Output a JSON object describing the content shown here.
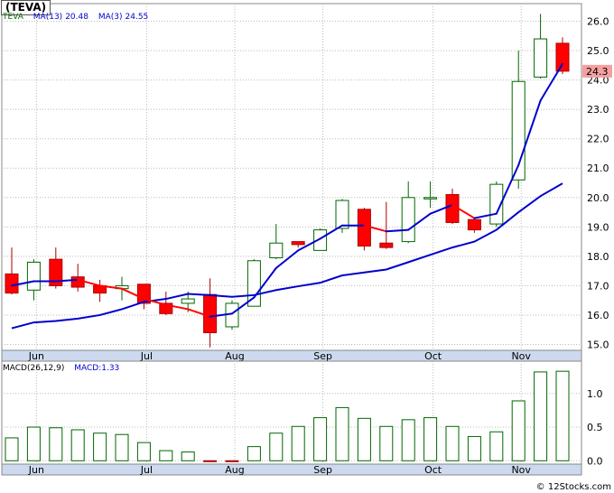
{
  "ticker": "(TEVA)",
  "legend": {
    "symbol": "TEVA",
    "ma13_label": "MA(13)",
    "ma13_value": "20.48",
    "ma3_label": "MA(3)",
    "ma3_value": "24.55"
  },
  "macd_legend": {
    "label": "MACD(26,12,9)",
    "value_label": "MACD:1.33"
  },
  "credit": "© 12Stocks.com",
  "last_price_label": "24.3",
  "colors": {
    "up_candle": "#006600",
    "down_candle": "#ff0000",
    "ma13": "#0000cc",
    "ma3_up": "#0000cc",
    "ma3_down": "#ff0000",
    "grid": "#bbbbbb",
    "axis_band": "#ccd9ee",
    "price_tag": "#f4a0a0",
    "macd_bar": "#006600"
  },
  "chart_data": [
    {
      "type": "candlestick",
      "title": "(TEVA)",
      "y_ticks": [
        15.0,
        16.0,
        17.0,
        18.0,
        19.0,
        20.0,
        21.0,
        22.0,
        23.0,
        24.0,
        25.0,
        26.0
      ],
      "y_tick_labels": [
        "15.0",
        "16.0",
        "17.0",
        "18.0",
        "19.0",
        "20.0",
        "21.0",
        "22.0",
        "23.0",
        "24.0",
        "25.0",
        "26.0"
      ],
      "ylim": [
        14.8,
        26.6
      ],
      "x_labels": [
        {
          "label": "Jun",
          "index": 1
        },
        {
          "label": "Jul",
          "index": 6
        },
        {
          "label": "Aug",
          "index": 10
        },
        {
          "label": "Sep",
          "index": 14
        },
        {
          "label": "Oct",
          "index": 19
        },
        {
          "label": "Nov",
          "index": 23
        }
      ],
      "candles": [
        {
          "open": 17.4,
          "high": 18.3,
          "low": 16.7,
          "close": 16.75
        },
        {
          "open": 16.85,
          "high": 17.9,
          "low": 16.5,
          "close": 17.8
        },
        {
          "open": 17.9,
          "high": 18.3,
          "low": 16.9,
          "close": 17.0
        },
        {
          "open": 17.3,
          "high": 17.75,
          "low": 16.8,
          "close": 16.95
        },
        {
          "open": 17.0,
          "high": 17.2,
          "low": 16.45,
          "close": 16.75
        },
        {
          "open": 16.9,
          "high": 17.3,
          "low": 16.5,
          "close": 17.0
        },
        {
          "open": 17.05,
          "high": 17.05,
          "low": 16.2,
          "close": 16.4
        },
        {
          "open": 16.4,
          "high": 16.8,
          "low": 16.0,
          "close": 16.05
        },
        {
          "open": 16.4,
          "high": 16.8,
          "low": 16.1,
          "close": 16.55
        },
        {
          "open": 16.7,
          "high": 17.25,
          "low": 14.9,
          "close": 15.4
        },
        {
          "open": 15.6,
          "high": 16.5,
          "low": 15.5,
          "close": 16.4
        },
        {
          "open": 16.3,
          "high": 17.9,
          "low": 16.3,
          "close": 17.85
        },
        {
          "open": 17.95,
          "high": 19.1,
          "low": 17.9,
          "close": 18.45
        },
        {
          "open": 18.5,
          "high": 18.5,
          "low": 18.3,
          "close": 18.4
        },
        {
          "open": 18.2,
          "high": 18.95,
          "low": 18.2,
          "close": 18.9
        },
        {
          "open": 18.95,
          "high": 19.95,
          "low": 18.8,
          "close": 19.9
        },
        {
          "open": 19.6,
          "high": 19.65,
          "low": 18.2,
          "close": 18.35
        },
        {
          "open": 18.45,
          "high": 19.85,
          "low": 18.25,
          "close": 18.3
        },
        {
          "open": 18.5,
          "high": 20.55,
          "low": 18.45,
          "close": 20.0
        },
        {
          "open": 20.0,
          "high": 20.55,
          "low": 19.65,
          "close": 20.0
        },
        {
          "open": 20.1,
          "high": 20.3,
          "low": 19.1,
          "close": 19.15
        },
        {
          "open": 19.25,
          "high": 19.3,
          "low": 18.8,
          "close": 18.9
        },
        {
          "open": 19.1,
          "high": 20.55,
          "low": 19.0,
          "close": 20.45
        },
        {
          "open": 20.6,
          "high": 25.0,
          "low": 20.3,
          "close": 23.95
        },
        {
          "open": 24.1,
          "high": 26.25,
          "low": 24.05,
          "close": 25.4
        },
        {
          "open": 25.25,
          "high": 25.45,
          "low": 24.2,
          "close": 24.3
        }
      ],
      "series": [
        {
          "name": "MA(13)",
          "values": [
            15.55,
            15.75,
            15.8,
            15.88,
            16.0,
            16.2,
            16.45,
            16.55,
            16.72,
            16.68,
            16.62,
            16.68,
            16.85,
            16.98,
            17.1,
            17.35,
            17.45,
            17.55,
            17.8,
            18.05,
            18.3,
            18.5,
            18.9,
            19.5,
            20.05,
            20.48
          ]
        },
        {
          "name": "MA(3)",
          "values": [
            17.0,
            17.15,
            17.15,
            17.2,
            17.0,
            16.9,
            16.55,
            16.35,
            16.2,
            15.95,
            16.05,
            16.6,
            17.6,
            18.2,
            18.6,
            19.05,
            19.05,
            18.85,
            18.9,
            19.45,
            19.75,
            19.3,
            19.45,
            21.1,
            23.3,
            24.55
          ]
        }
      ]
    },
    {
      "type": "bar",
      "title": "MACD(26,12,9)",
      "y_ticks": [
        0.0,
        0.5,
        1.0
      ],
      "y_tick_labels": [
        "0.0",
        "0.5",
        "1.0"
      ],
      "ylim": [
        -0.05,
        1.48
      ],
      "x_labels": [
        {
          "label": "Jun",
          "index": 1
        },
        {
          "label": "Jul",
          "index": 6
        },
        {
          "label": "Aug",
          "index": 10
        },
        {
          "label": "Sep",
          "index": 14
        },
        {
          "label": "Oct",
          "index": 19
        },
        {
          "label": "Nov",
          "index": 23
        }
      ],
      "series": [
        {
          "name": "MACD:1.33",
          "values": [
            0.34,
            0.5,
            0.49,
            0.46,
            0.41,
            0.39,
            0.27,
            0.15,
            0.13,
            -0.01,
            -0.01,
            0.21,
            0.41,
            0.51,
            0.64,
            0.79,
            0.63,
            0.51,
            0.61,
            0.64,
            0.51,
            0.36,
            0.43,
            0.89,
            1.32,
            1.33
          ]
        }
      ]
    }
  ]
}
